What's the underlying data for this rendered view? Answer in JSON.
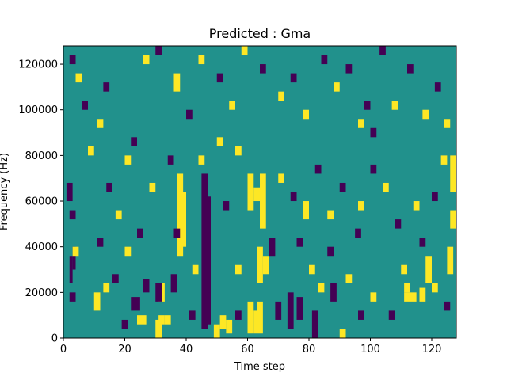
{
  "chart_data": {
    "type": "heatmap",
    "title": "Predicted : Gma",
    "xlabel": "Time step",
    "ylabel": "Frequency (Hz)",
    "xlim": [
      0,
      128
    ],
    "ylim": [
      0,
      128000
    ],
    "grid": false,
    "legend": "none",
    "x_ticks": [
      0,
      20,
      40,
      60,
      80,
      100,
      120
    ],
    "x_tick_labels": [
      "0",
      "20",
      "40",
      "60",
      "80",
      "100",
      "120"
    ],
    "y_ticks": [
      0,
      20000,
      40000,
      60000,
      80000,
      100000,
      120000
    ],
    "y_tick_labels": [
      "0",
      "20000",
      "40000",
      "60000",
      "80000",
      "100000",
      "120000"
    ],
    "value_levels": [
      -1,
      0,
      1
    ],
    "colors": {
      "-1": "#440154",
      "0": "#21918c",
      "1": "#fde725"
    },
    "background_value": 0,
    "n_time_steps": 128,
    "n_freq_bins": 128,
    "freq_bin_hz": 1000,
    "cells_note_format": "[time_step_start, time_step_end, freq_start_hz, freq_end_hz, value]",
    "cells": [
      [
        30,
        32,
        0,
        8000,
        1
      ],
      [
        31,
        33,
        16000,
        24000,
        1
      ],
      [
        37,
        39,
        36000,
        72000,
        1
      ],
      [
        38,
        40,
        40000,
        64000,
        1
      ],
      [
        45,
        47,
        4000,
        72000,
        -1
      ],
      [
        46,
        48,
        6000,
        62000,
        -1
      ],
      [
        47,
        48,
        20000,
        60000,
        -1
      ],
      [
        49,
        51,
        0,
        6000,
        1
      ],
      [
        51,
        53,
        4000,
        10000,
        1
      ],
      [
        53,
        55,
        2000,
        8000,
        1
      ],
      [
        60,
        62,
        2000,
        16000,
        1
      ],
      [
        62,
        63,
        2000,
        12000,
        1
      ],
      [
        63,
        65,
        2000,
        16000,
        1
      ],
      [
        60,
        62,
        56000,
        72000,
        1
      ],
      [
        62,
        64,
        60000,
        66000,
        1
      ],
      [
        64,
        66,
        48000,
        72000,
        1
      ],
      [
        63,
        65,
        24000,
        40000,
        1
      ],
      [
        65,
        67,
        28000,
        36000,
        1
      ],
      [
        125,
        127,
        28000,
        40000,
        1
      ],
      [
        126,
        128,
        48000,
        56000,
        1
      ],
      [
        126,
        128,
        64000,
        80000,
        1
      ],
      [
        111,
        113,
        20000,
        24000,
        1
      ],
      [
        111,
        115,
        16000,
        20000,
        1
      ],
      [
        116,
        118,
        16000,
        22000,
        1
      ],
      [
        118,
        120,
        24000,
        36000,
        1
      ],
      [
        92,
        94,
        24000,
        28000,
        1
      ],
      [
        83,
        85,
        20000,
        24000,
        1
      ],
      [
        69,
        71,
        8000,
        16000,
        -1
      ],
      [
        73,
        75,
        4000,
        20000,
        -1
      ],
      [
        76,
        78,
        8000,
        18000,
        -1
      ],
      [
        81,
        83,
        0,
        12000,
        -1
      ],
      [
        87,
        89,
        16000,
        24000,
        -1
      ],
      [
        95,
        97,
        44000,
        48000,
        -1
      ],
      [
        98,
        100,
        100000,
        104000,
        -1
      ],
      [
        100,
        102,
        88000,
        92000,
        -1
      ],
      [
        67,
        69,
        36000,
        44000,
        -1
      ],
      [
        19,
        21,
        4000,
        8000,
        -1
      ],
      [
        22,
        25,
        12000,
        18000,
        -1
      ],
      [
        30,
        32,
        16000,
        24000,
        -1
      ],
      [
        35,
        37,
        20000,
        28000,
        -1
      ],
      [
        41,
        43,
        8000,
        12000,
        -1
      ],
      [
        26,
        28,
        20000,
        26000,
        -1
      ],
      [
        24,
        27,
        6000,
        10000,
        1
      ],
      [
        31,
        33,
        6000,
        10000,
        1
      ],
      [
        33,
        35,
        6000,
        10000,
        1
      ],
      [
        2,
        4,
        16000,
        20000,
        -1
      ],
      [
        2,
        3,
        24000,
        36000,
        -1
      ],
      [
        3,
        4,
        30000,
        40000,
        -1
      ],
      [
        1,
        3,
        60000,
        68000,
        -1
      ],
      [
        2,
        4,
        52000,
        56000,
        -1
      ],
      [
        3,
        5,
        36000,
        40000,
        1
      ],
      [
        10,
        12,
        12000,
        20000,
        1
      ],
      [
        13,
        15,
        20000,
        24000,
        1
      ],
      [
        16,
        18,
        24000,
        28000,
        -1
      ],
      [
        11,
        13,
        40000,
        44000,
        -1
      ],
      [
        17,
        19,
        52000,
        56000,
        1
      ],
      [
        14,
        16,
        64000,
        68000,
        -1
      ],
      [
        20,
        22,
        76000,
        80000,
        1
      ],
      [
        22,
        24,
        84000,
        88000,
        -1
      ],
      [
        11,
        13,
        92000,
        96000,
        1
      ],
      [
        13,
        15,
        108000,
        112000,
        -1
      ],
      [
        26,
        28,
        120000,
        124000,
        1
      ],
      [
        30,
        32,
        124000,
        128000,
        -1
      ],
      [
        36,
        38,
        108000,
        116000,
        1
      ],
      [
        40,
        42,
        96000,
        100000,
        -1
      ],
      [
        44,
        46,
        120000,
        124000,
        1
      ],
      [
        50,
        52,
        112000,
        116000,
        -1
      ],
      [
        54,
        56,
        100000,
        104000,
        1
      ],
      [
        58,
        60,
        124000,
        128000,
        1
      ],
      [
        64,
        66,
        116000,
        120000,
        -1
      ],
      [
        70,
        72,
        104000,
        108000,
        1
      ],
      [
        74,
        76,
        112000,
        116000,
        -1
      ],
      [
        78,
        80,
        96000,
        100000,
        1
      ],
      [
        84,
        86,
        120000,
        124000,
        -1
      ],
      [
        88,
        90,
        108000,
        112000,
        1
      ],
      [
        92,
        94,
        116000,
        120000,
        -1
      ],
      [
        96,
        98,
        92000,
        96000,
        1
      ],
      [
        103,
        105,
        124000,
        128000,
        -1
      ],
      [
        107,
        109,
        100000,
        104000,
        1
      ],
      [
        112,
        114,
        116000,
        120000,
        -1
      ],
      [
        117,
        119,
        96000,
        100000,
        1
      ],
      [
        121,
        123,
        108000,
        112000,
        -1
      ],
      [
        124,
        126,
        92000,
        96000,
        1
      ],
      [
        123,
        125,
        76000,
        80000,
        1
      ],
      [
        120,
        122,
        60000,
        64000,
        -1
      ],
      [
        114,
        116,
        56000,
        60000,
        1
      ],
      [
        108,
        110,
        48000,
        52000,
        -1
      ],
      [
        104,
        106,
        64000,
        68000,
        1
      ],
      [
        100,
        102,
        72000,
        76000,
        -1
      ],
      [
        96,
        98,
        56000,
        60000,
        1
      ],
      [
        90,
        92,
        64000,
        68000,
        -1
      ],
      [
        86,
        88,
        52000,
        56000,
        1
      ],
      [
        82,
        84,
        72000,
        76000,
        -1
      ],
      [
        78,
        80,
        52000,
        60000,
        1
      ],
      [
        74,
        76,
        60000,
        64000,
        -1
      ],
      [
        70,
        72,
        68000,
        72000,
        1
      ],
      [
        56,
        58,
        80000,
        84000,
        1
      ],
      [
        52,
        54,
        56000,
        60000,
        -1
      ],
      [
        50,
        52,
        84000,
        88000,
        1
      ],
      [
        44,
        46,
        76000,
        80000,
        1
      ],
      [
        34,
        36,
        76000,
        80000,
        -1
      ],
      [
        28,
        30,
        64000,
        68000,
        1
      ],
      [
        24,
        26,
        44000,
        48000,
        -1
      ],
      [
        20,
        22,
        36000,
        40000,
        1
      ],
      [
        8,
        10,
        80000,
        84000,
        1
      ],
      [
        6,
        8,
        100000,
        104000,
        -1
      ],
      [
        4,
        6,
        112000,
        116000,
        1
      ],
      [
        2,
        4,
        120000,
        124000,
        -1
      ],
      [
        106,
        108,
        8000,
        12000,
        -1
      ],
      [
        110,
        112,
        28000,
        32000,
        1
      ],
      [
        116,
        118,
        40000,
        44000,
        -1
      ],
      [
        120,
        122,
        20000,
        24000,
        1
      ],
      [
        124,
        126,
        12000,
        16000,
        -1
      ],
      [
        100,
        102,
        16000,
        20000,
        1
      ],
      [
        96,
        98,
        8000,
        12000,
        -1
      ],
      [
        90,
        92,
        0,
        4000,
        1
      ],
      [
        86,
        88,
        36000,
        40000,
        -1
      ],
      [
        80,
        82,
        28000,
        32000,
        1
      ],
      [
        76,
        78,
        40000,
        44000,
        -1
      ],
      [
        56,
        58,
        28000,
        32000,
        1
      ],
      [
        56,
        58,
        8000,
        12000,
        -1
      ],
      [
        42,
        44,
        28000,
        32000,
        1
      ],
      [
        36,
        38,
        44000,
        48000,
        -1
      ]
    ]
  }
}
